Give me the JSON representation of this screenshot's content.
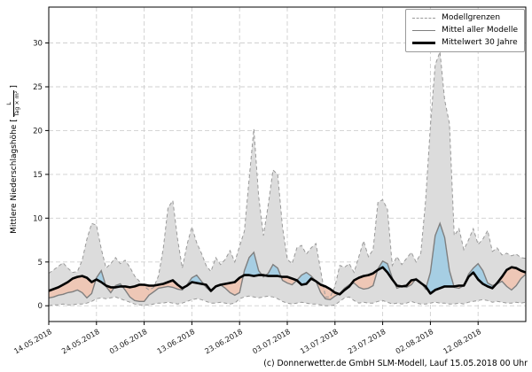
{
  "legend": {
    "items": [
      {
        "label": "Modellgrenzen",
        "style": "dashed-gray"
      },
      {
        "label": "Mittel aller Modelle",
        "style": "solid-gray"
      },
      {
        "label": "Mittelwert 30 Jahre",
        "style": "solid-black-thick"
      }
    ]
  },
  "axes": {
    "ylabel_prefix": "Mittlere Niederschlagshöhe [",
    "frac_num": "L",
    "frac_den": "Tag × m²",
    "ylabel_suffix": "]",
    "yticks": [
      0,
      5,
      10,
      15,
      20,
      25,
      30
    ],
    "xticks": [
      "14.05.2018",
      "24.05.2018",
      "03.06.2018",
      "13.06.2018",
      "23.06.2018",
      "03.07.2018",
      "13.07.2018",
      "23.07.2018",
      "02.08.2018",
      "12.08.2018"
    ]
  },
  "caption": "(c) Donnerwetter.de GmbH SLM-Modell, Lauf 15.05.2018 00 Uhr",
  "chart_data": {
    "type": "line",
    "title": "",
    "xlabel": "",
    "ylabel": "Mittlere Niederschlagshöhe [L/(Tag × m²)]",
    "x_start_date": "14.05.2018",
    "x_end_date": "22.08.2018",
    "x_step_days": 1,
    "x_tick_labels": [
      "14.05.2018",
      "24.05.2018",
      "03.06.2018",
      "13.06.2018",
      "23.06.2018",
      "03.07.2018",
      "13.07.2018",
      "23.07.2018",
      "02.08.2018",
      "12.08.2018"
    ],
    "ylim": [
      -1.8,
      34.1
    ],
    "grid": true,
    "legend_position": "top-right",
    "colors": {
      "band_fill": "#dcdcdc",
      "band_edge": "#999999",
      "model_mean": "#7f7f7f",
      "mean_30y": "#000000",
      "above_normal_fill": "#a6cee3",
      "below_normal_fill": "#eec7b6",
      "grid": "#cfcfcf"
    },
    "series": [
      {
        "name": "Modellgrenzen (obere Grenze)",
        "style": "dashed-gray",
        "values": [
          3.7,
          4.1,
          4.5,
          4.9,
          4.3,
          3.8,
          3.9,
          5.2,
          7.6,
          9.4,
          9.2,
          6.5,
          4.3,
          4.8,
          5.5,
          4.8,
          5.2,
          4.4,
          3.4,
          2.8,
          2.2,
          1.8,
          2.1,
          3.4,
          6.5,
          11.2,
          12.0,
          7.6,
          4.3,
          7.0,
          9.0,
          7.2,
          6.0,
          4.6,
          3.9,
          5.5,
          4.7,
          5.3,
          6.3,
          5.0,
          6.8,
          8.5,
          14.5,
          20.2,
          12.5,
          8.0,
          11.5,
          15.5,
          15.0,
          9.0,
          5.3,
          4.8,
          6.6,
          6.9,
          5.9,
          6.6,
          7.1,
          4.0,
          1.0,
          1.0,
          2.2,
          4.6,
          4.4,
          4.8,
          3.8,
          5.6,
          7.4,
          5.6,
          6.4,
          11.8,
          12.1,
          11.0,
          4.6,
          5.6,
          4.7,
          5.4,
          6.1,
          5.0,
          6.0,
          12.0,
          20.5,
          27.5,
          29.0,
          23.5,
          20.8,
          8.0,
          8.8,
          6.4,
          7.5,
          8.8,
          7.0,
          7.6,
          8.6,
          6.2,
          6.6,
          5.8,
          6.0,
          5.7,
          5.9,
          5.5,
          5.4
        ]
      },
      {
        "name": "Modellgrenzen (untere Grenze)",
        "style": "dashed-gray",
        "values": [
          0.0,
          0.1,
          0.1,
          0.2,
          0.1,
          0.1,
          0.2,
          0.2,
          0.3,
          0.5,
          0.8,
          0.9,
          0.8,
          0.9,
          1.0,
          0.8,
          0.6,
          0.4,
          0.2,
          0.1,
          0.1,
          0.1,
          0.2,
          0.3,
          0.3,
          0.4,
          0.3,
          0.2,
          0.3,
          0.5,
          0.7,
          0.8,
          0.7,
          0.5,
          0.3,
          0.3,
          0.4,
          0.3,
          0.2,
          0.3,
          0.8,
          1.0,
          1.1,
          1.0,
          0.9,
          1.0,
          1.1,
          1.0,
          0.8,
          0.5,
          0.3,
          0.2,
          0.3,
          0.4,
          0.3,
          0.2,
          0.2,
          0.1,
          0.0,
          0.0,
          0.1,
          0.5,
          0.9,
          1.0,
          0.6,
          0.3,
          0.4,
          0.3,
          0.3,
          0.5,
          0.6,
          0.4,
          0.2,
          0.3,
          0.2,
          0.3,
          0.5,
          0.3,
          0.2,
          0.2,
          0.3,
          0.4,
          0.3,
          0.3,
          0.2,
          0.2,
          0.3,
          0.2,
          0.4,
          0.5,
          0.6,
          0.7,
          0.6,
          0.4,
          0.5,
          0.4,
          0.3,
          0.3,
          0.4,
          0.3,
          0.4
        ]
      },
      {
        "name": "Mittel aller Modelle",
        "style": "solid-gray",
        "values": [
          0.9,
          1.0,
          1.2,
          1.3,
          1.5,
          1.6,
          1.8,
          1.5,
          0.9,
          1.4,
          3.2,
          4.0,
          2.2,
          1.5,
          2.3,
          2.5,
          1.8,
          1.0,
          0.6,
          0.5,
          0.5,
          1.2,
          1.6,
          2.0,
          2.1,
          2.2,
          2.1,
          1.9,
          1.8,
          2.4,
          3.2,
          3.5,
          2.8,
          2.1,
          1.6,
          2.2,
          2.4,
          2.0,
          1.5,
          1.2,
          1.5,
          4.0,
          5.5,
          6.1,
          4.0,
          3.3,
          3.7,
          4.7,
          4.3,
          2.9,
          2.6,
          2.4,
          2.9,
          3.5,
          3.8,
          3.4,
          2.8,
          1.5,
          0.8,
          0.7,
          1.1,
          1.4,
          2.0,
          2.4,
          2.6,
          2.1,
          1.9,
          2.0,
          2.3,
          4.2,
          5.1,
          4.8,
          3.2,
          2.0,
          2.2,
          2.1,
          2.4,
          3.1,
          2.7,
          1.9,
          3.8,
          8.0,
          9.4,
          7.8,
          4.0,
          2.1,
          2.0,
          2.3,
          3.6,
          4.3,
          4.8,
          4.0,
          2.6,
          2.3,
          2.5,
          2.8,
          2.2,
          1.8,
          2.3,
          3.1,
          3.6
        ]
      },
      {
        "name": "Mittelwert 30 Jahre",
        "style": "solid-black-thick",
        "values": [
          1.7,
          1.9,
          2.1,
          2.4,
          2.7,
          3.1,
          3.3,
          3.4,
          3.2,
          2.7,
          3.0,
          2.7,
          2.3,
          2.1,
          2.1,
          2.2,
          2.2,
          2.1,
          2.2,
          2.4,
          2.4,
          2.3,
          2.3,
          2.4,
          2.5,
          2.7,
          2.9,
          2.4,
          2.0,
          2.3,
          2.7,
          2.6,
          2.5,
          2.4,
          1.7,
          2.2,
          2.4,
          2.5,
          2.6,
          2.7,
          3.2,
          3.5,
          3.5,
          3.4,
          3.5,
          3.5,
          3.4,
          3.4,
          3.4,
          3.3,
          3.3,
          3.1,
          2.9,
          2.4,
          2.5,
          3.1,
          2.8,
          2.4,
          2.2,
          1.9,
          1.5,
          1.3,
          1.8,
          2.2,
          2.9,
          3.2,
          3.4,
          3.5,
          3.7,
          4.1,
          4.4,
          3.8,
          3.0,
          2.3,
          2.2,
          2.3,
          2.9,
          3.0,
          2.6,
          2.2,
          1.4,
          1.8,
          2.0,
          2.2,
          2.2,
          2.2,
          2.3,
          2.3,
          3.3,
          3.8,
          3.0,
          2.5,
          2.2,
          2.0,
          2.6,
          3.3,
          4.1,
          4.4,
          4.3,
          4.0,
          3.8
        ]
      }
    ]
  }
}
